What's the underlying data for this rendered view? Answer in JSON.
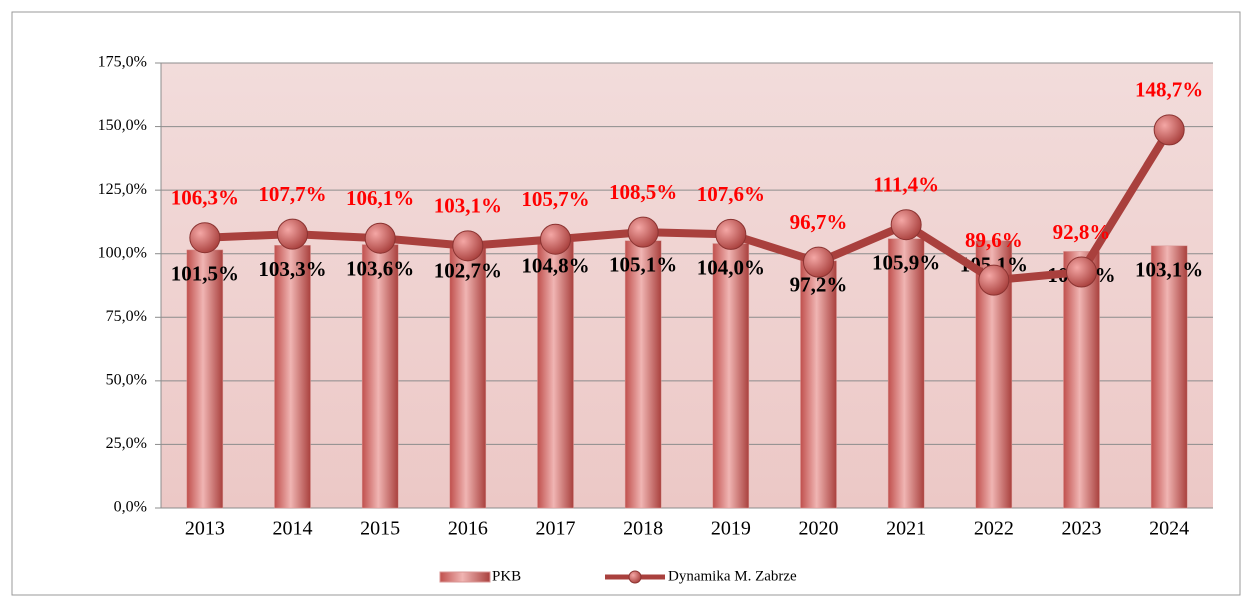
{
  "chart_data": {
    "type": "bar",
    "categories": [
      "2013",
      "2014",
      "2015",
      "2016",
      "2017",
      "2018",
      "2019",
      "2020",
      "2021",
      "2022",
      "2023",
      "2024"
    ],
    "series": [
      {
        "name": "PKB",
        "type": "bar",
        "color": "#d99694",
        "values": [
          101.5,
          103.3,
          103.6,
          102.7,
          104.8,
          105.1,
          104.0,
          97.2,
          105.9,
          105.1,
          100.9,
          103.1
        ],
        "value_labels": [
          "101,5%",
          "103,3%",
          "103,6%",
          "102,7%",
          "104,8%",
          "105,1%",
          "104,0%",
          "97,2%",
          "105,9%",
          "105,1%",
          "100,9%",
          "103,1%"
        ]
      },
      {
        "name": "Dynamika M. Zabrze",
        "type": "line",
        "color": "#a9403d",
        "values": [
          106.3,
          107.7,
          106.1,
          103.1,
          105.7,
          108.5,
          107.6,
          96.7,
          111.4,
          89.6,
          92.8,
          148.7
        ],
        "value_labels": [
          "106,3%",
          "107,7%",
          "106,1%",
          "103,1%",
          "105,7%",
          "108,5%",
          "107,6%",
          "96,7%",
          "111,4%",
          "89,6%",
          "92,8%",
          "148,7%"
        ]
      }
    ],
    "ylim": [
      0,
      175
    ],
    "yticks": [
      {
        "value": 0,
        "label": "0,0%"
      },
      {
        "value": 25,
        "label": "25,0%"
      },
      {
        "value": 50,
        "label": "50,0%"
      },
      {
        "value": 75,
        "label": "75,0%"
      },
      {
        "value": 100,
        "label": "100,0%"
      },
      {
        "value": 125,
        "label": "125,0%"
      },
      {
        "value": 150,
        "label": "150,0%"
      },
      {
        "value": 175,
        "label": "175,0%"
      }
    ],
    "grid": true,
    "legend": "bottom"
  }
}
